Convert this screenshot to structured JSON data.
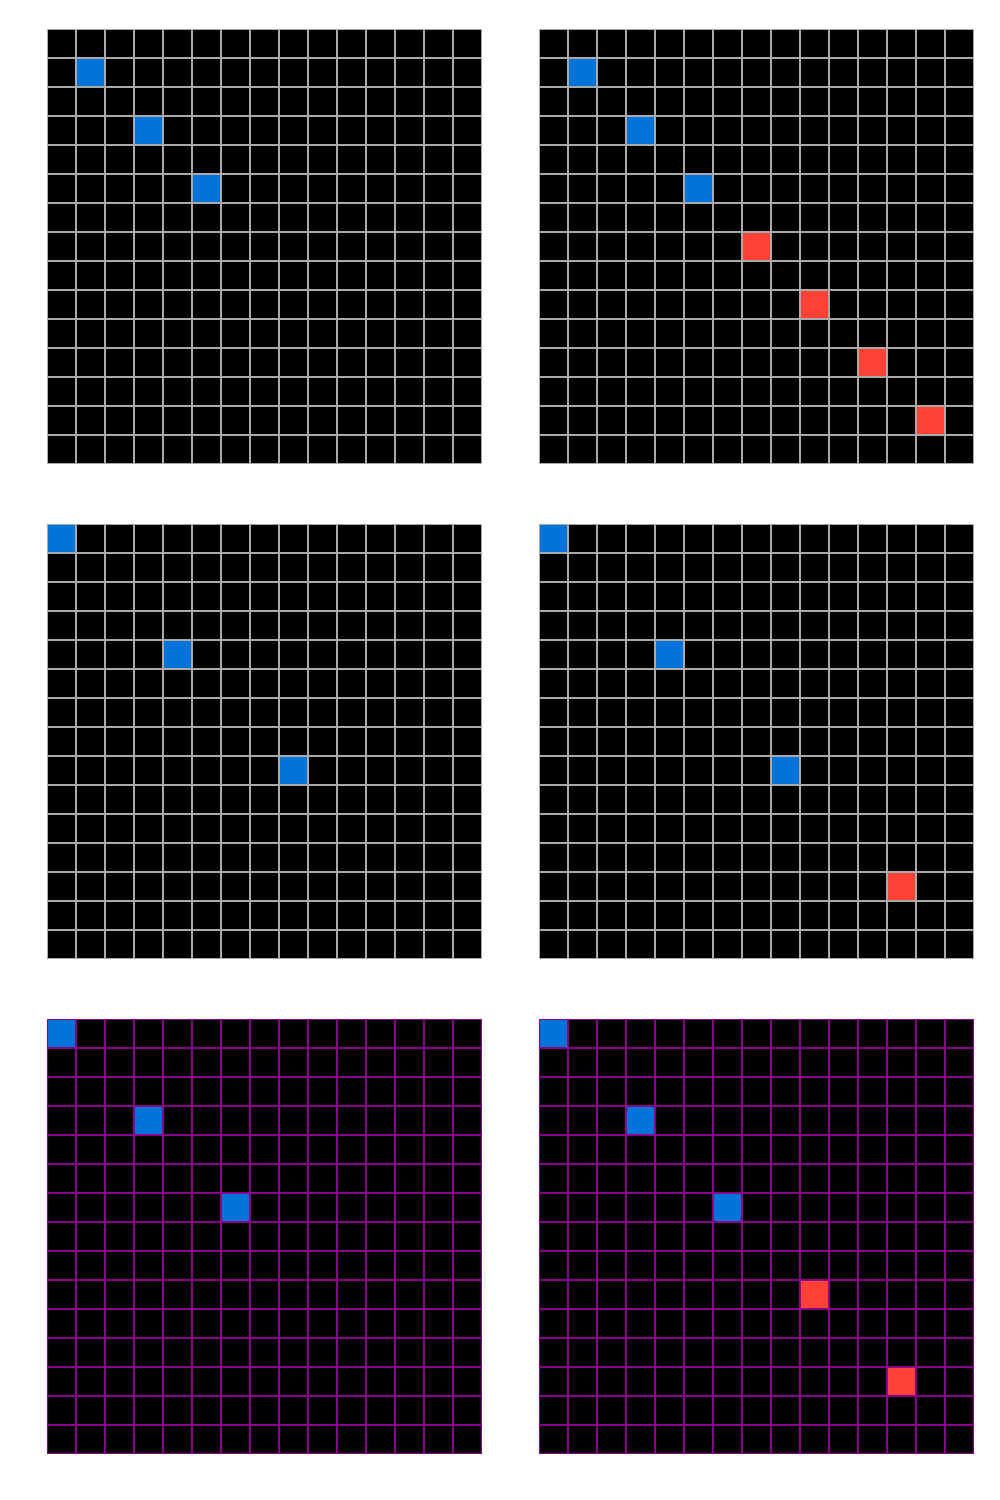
{
  "colors": {
    "background": "#000000",
    "blue": "#0074D9",
    "red": "#FF4136",
    "grid_gray": "#AAAAAA",
    "grid_purple": "#8B008B"
  },
  "grid_size": 15,
  "examples": [
    {
      "grid_color": "grid_gray",
      "input": {
        "cells": [
          {
            "row": 1,
            "col": 1,
            "color": "blue"
          },
          {
            "row": 3,
            "col": 3,
            "color": "blue"
          },
          {
            "row": 5,
            "col": 5,
            "color": "blue"
          }
        ]
      },
      "output": {
        "cells": [
          {
            "row": 1,
            "col": 1,
            "color": "blue"
          },
          {
            "row": 3,
            "col": 3,
            "color": "blue"
          },
          {
            "row": 5,
            "col": 5,
            "color": "blue"
          },
          {
            "row": 7,
            "col": 7,
            "color": "red"
          },
          {
            "row": 9,
            "col": 9,
            "color": "red"
          },
          {
            "row": 11,
            "col": 11,
            "color": "red"
          },
          {
            "row": 13,
            "col": 13,
            "color": "red"
          }
        ]
      }
    },
    {
      "grid_color": "grid_gray",
      "input": {
        "cells": [
          {
            "row": 0,
            "col": 0,
            "color": "blue"
          },
          {
            "row": 4,
            "col": 4,
            "color": "blue"
          },
          {
            "row": 8,
            "col": 8,
            "color": "blue"
          }
        ]
      },
      "output": {
        "cells": [
          {
            "row": 0,
            "col": 0,
            "color": "blue"
          },
          {
            "row": 4,
            "col": 4,
            "color": "blue"
          },
          {
            "row": 8,
            "col": 8,
            "color": "blue"
          },
          {
            "row": 12,
            "col": 12,
            "color": "red"
          }
        ]
      }
    },
    {
      "grid_color": "grid_purple",
      "input": {
        "cells": [
          {
            "row": 0,
            "col": 0,
            "color": "blue"
          },
          {
            "row": 3,
            "col": 3,
            "color": "blue"
          },
          {
            "row": 6,
            "col": 6,
            "color": "blue"
          }
        ]
      },
      "output": {
        "cells": [
          {
            "row": 0,
            "col": 0,
            "color": "blue"
          },
          {
            "row": 3,
            "col": 3,
            "color": "blue"
          },
          {
            "row": 6,
            "col": 6,
            "color": "blue"
          },
          {
            "row": 9,
            "col": 9,
            "color": "red"
          },
          {
            "row": 12,
            "col": 12,
            "color": "red"
          }
        ]
      }
    }
  ]
}
